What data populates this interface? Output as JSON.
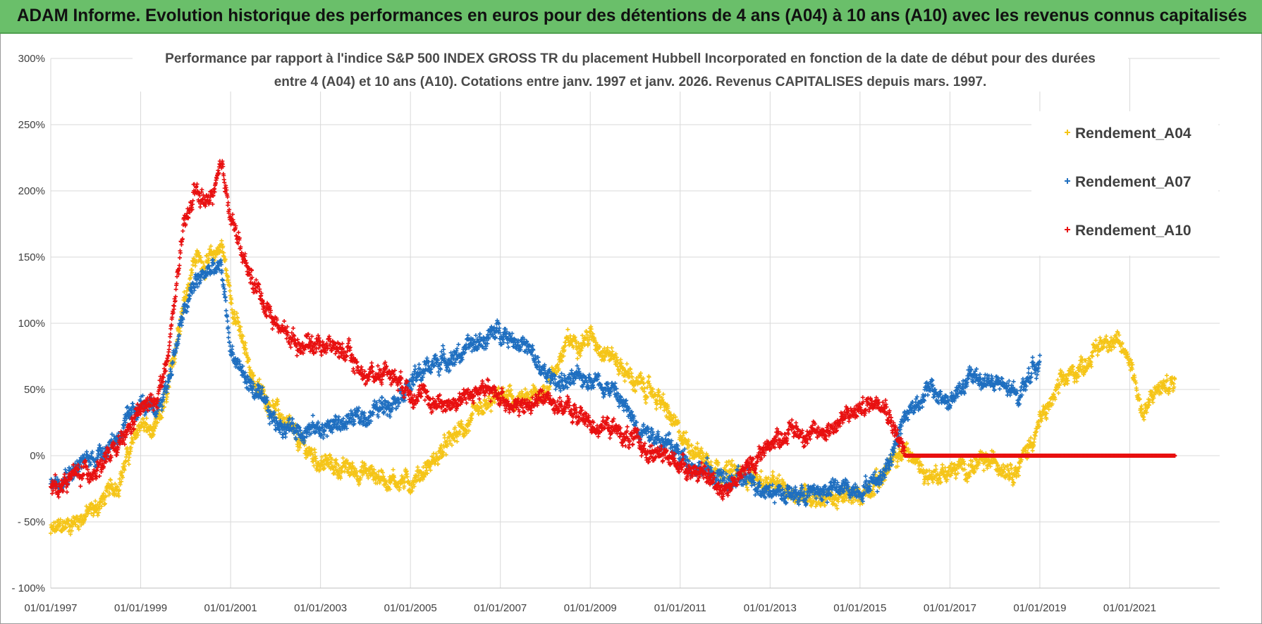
{
  "banner": {
    "title": "ADAM Informe. Evolution historique des performances en euros pour des détentions de 4 ans (A04) à 10 ans (A10) avec les revenus connus capitalisés"
  },
  "colors": {
    "banner_bg": "#6abf6a",
    "A04": "#f5c518",
    "A07": "#1f6fc0",
    "A10": "#e81010",
    "grid": "#d9d9d9"
  },
  "chart_data": {
    "type": "scatter",
    "title_lines": [
      "Performance par rapport à l'indice S&P 500 INDEX GROSS TR  du placement Hubbell Incorporated en fonction de la date de début pour des durées",
      "entre 4 (A04) et 10 ans (A10). Cotations entre janv. 1997 et janv. 2026. Revenus CAPITALISES depuis mars. 1997."
    ],
    "xlabel": "",
    "ylabel": "",
    "x_unit": "year",
    "xlim": [
      1997.0,
      2023.0
    ],
    "ylim": [
      -100,
      300
    ],
    "y_ticks": [
      300,
      250,
      200,
      150,
      100,
      50,
      0,
      -50,
      -100
    ],
    "y_tick_labels": [
      "300%",
      "250%",
      "200%",
      "150%",
      "100%",
      "50%",
      "0%",
      "- 50%",
      "- 100%"
    ],
    "x_ticks": [
      1997,
      1999,
      2001,
      2003,
      2005,
      2007,
      2009,
      2011,
      2013,
      2015,
      2017,
      2019,
      2021
    ],
    "x_tick_labels": [
      "01/01/1997",
      "01/01/1999",
      "01/01/2001",
      "01/01/2003",
      "01/01/2005",
      "01/01/2007",
      "01/01/2009",
      "01/01/2011",
      "01/01/2013",
      "01/01/2015",
      "01/01/2017",
      "01/01/2019",
      "01/01/2021"
    ],
    "grid": true,
    "legend_position": "top-right",
    "marker": "+",
    "series": [
      {
        "name": "Rendement_A04",
        "color": "#f5c518",
        "x": [
          1997.0,
          1997.5,
          1998.0,
          1998.5,
          1999.0,
          1999.3,
          1999.6,
          1999.9,
          2000.2,
          2000.5,
          2000.8,
          2001.0,
          2001.3,
          2001.6,
          2002.0,
          2002.5,
          2003.0,
          2003.5,
          2004.0,
          2004.5,
          2005.0,
          2005.5,
          2006.0,
          2006.5,
          2007.0,
          2007.5,
          2008.0,
          2008.5,
          2009.0,
          2009.5,
          2010.0,
          2010.5,
          2011.0,
          2011.5,
          2012.0,
          2012.5,
          2013.0,
          2013.5,
          2014.0,
          2014.5,
          2015.0,
          2015.5,
          2016.0,
          2016.5,
          2017.0,
          2017.5,
          2018.0,
          2018.5,
          2019.0,
          2019.5,
          2020.0,
          2020.5,
          2021.0,
          2021.3,
          2021.6,
          2022.0
        ],
        "y": [
          -58,
          -50,
          -40,
          -20,
          25,
          15,
          45,
          110,
          150,
          145,
          160,
          120,
          80,
          50,
          35,
          10,
          -5,
          -10,
          -12,
          -18,
          -20,
          -5,
          15,
          30,
          45,
          40,
          50,
          85,
          90,
          75,
          55,
          45,
          15,
          0,
          -12,
          -15,
          -22,
          -28,
          -30,
          -33,
          -30,
          -15,
          5,
          -15,
          -12,
          -8,
          -5,
          -10,
          25,
          55,
          70,
          90,
          75,
          30,
          50,
          55
        ]
      },
      {
        "name": "Rendement_A07",
        "color": "#1f6fc0",
        "x": [
          1997.0,
          1997.5,
          1998.0,
          1998.5,
          1999.0,
          1999.3,
          1999.6,
          1999.9,
          2000.2,
          2000.5,
          2000.8,
          2001.0,
          2001.3,
          2001.6,
          2002.0,
          2002.5,
          2003.0,
          2003.5,
          2004.0,
          2004.5,
          2005.0,
          2005.5,
          2006.0,
          2006.5,
          2007.0,
          2007.5,
          2008.0,
          2008.5,
          2009.0,
          2009.5,
          2010.0,
          2010.5,
          2011.0,
          2011.5,
          2012.0,
          2012.5,
          2013.0,
          2013.5,
          2014.0,
          2014.5,
          2015.0,
          2015.5,
          2016.0,
          2016.5,
          2017.0,
          2017.5,
          2018.0,
          2018.5,
          2019.0
        ],
        "y": [
          -20,
          -10,
          0,
          15,
          40,
          30,
          55,
          100,
          130,
          140,
          140,
          80,
          60,
          45,
          25,
          20,
          20,
          25,
          30,
          40,
          55,
          70,
          75,
          85,
          95,
          85,
          60,
          55,
          60,
          50,
          25,
          15,
          0,
          -10,
          -20,
          -18,
          -25,
          -30,
          -28,
          -25,
          -25,
          -15,
          30,
          50,
          40,
          60,
          55,
          45,
          75
        ]
      },
      {
        "name": "Rendement_A10",
        "color": "#e81010",
        "x": [
          1997.0,
          1997.5,
          1998.0,
          1998.5,
          1999.0,
          1999.3,
          1999.6,
          1999.9,
          2000.2,
          2000.5,
          2000.8,
          2001.0,
          2001.3,
          2001.6,
          2002.0,
          2002.5,
          2003.0,
          2003.5,
          2004.0,
          2004.5,
          2005.0,
          2005.5,
          2006.0,
          2006.5,
          2007.0,
          2007.5,
          2008.0,
          2008.5,
          2009.0,
          2009.5,
          2010.0,
          2010.5,
          2011.0,
          2011.5,
          2012.0,
          2012.5,
          2013.0,
          2013.5,
          2014.0,
          2014.5,
          2015.0,
          2015.5,
          2016.0,
          2016.5,
          2017.0,
          2017.5,
          2018.0,
          2018.5,
          2019.0,
          2019.5,
          2020.0,
          2020.5,
          2021.0,
          2021.5,
          2022.0
        ],
        "y": [
          -28,
          -15,
          -10,
          5,
          35,
          40,
          70,
          160,
          200,
          190,
          215,
          185,
          145,
          125,
          100,
          85,
          85,
          80,
          60,
          65,
          50,
          40,
          40,
          50,
          45,
          35,
          45,
          35,
          25,
          20,
          10,
          0,
          -5,
          -15,
          -25,
          -10,
          10,
          20,
          15,
          25,
          35,
          45,
          0,
          0,
          0,
          0,
          0,
          0,
          0,
          0,
          0,
          0,
          0,
          0,
          0
        ]
      }
    ]
  }
}
